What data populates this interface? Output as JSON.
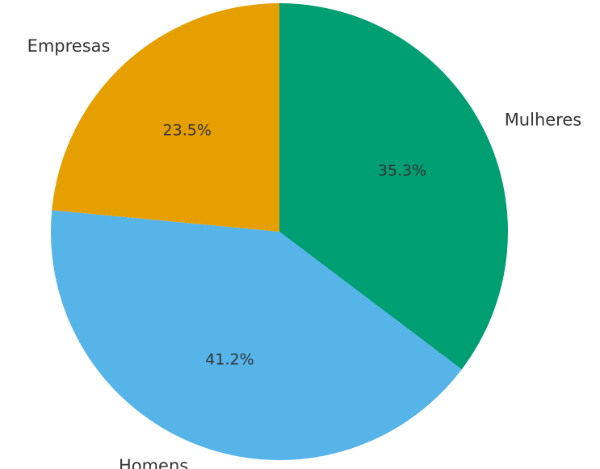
{
  "chart_data": {
    "type": "pie",
    "title": "",
    "start_angle_deg": 90,
    "direction": "clockwise",
    "slices": [
      {
        "label": "Mulheres",
        "value": 35.3,
        "pct_label": "35.3%",
        "color": "#009E73"
      },
      {
        "label": "Homens",
        "value": 41.2,
        "pct_label": "41.2%",
        "color": "#56B4E9"
      },
      {
        "label": "Empresas",
        "value": 23.5,
        "pct_label": "23.5%",
        "color": "#E69F00"
      }
    ]
  }
}
